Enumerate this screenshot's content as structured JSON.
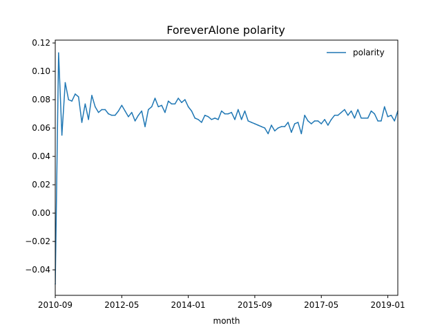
{
  "chart_data": {
    "type": "line",
    "title": "ForeverAlone polarity",
    "xlabel": "month",
    "ylabel": "",
    "legend_position": "top-right",
    "grid": false,
    "line_color": "#1f77b4",
    "x_start": "2010-08",
    "x_end": "2019-04",
    "xlim": [
      "2010-09",
      "2019-04"
    ],
    "ylim": [
      -0.058,
      0.122
    ],
    "x_ticks": [
      {
        "value": "2010-09",
        "label": "2010-09"
      },
      {
        "value": "2012-05",
        "label": "2012-05"
      },
      {
        "value": "2014-01",
        "label": "2014-01"
      },
      {
        "value": "2015-09",
        "label": "2015-09"
      },
      {
        "value": "2017-05",
        "label": "2017-05"
      },
      {
        "value": "2019-01",
        "label": "2019-01"
      }
    ],
    "y_ticks": [
      {
        "value": -0.04,
        "label": "−0.04"
      },
      {
        "value": -0.02,
        "label": "−0.02"
      },
      {
        "value": 0.0,
        "label": "0.00"
      },
      {
        "value": 0.02,
        "label": "0.02"
      },
      {
        "value": 0.04,
        "label": "0.04"
      },
      {
        "value": 0.06,
        "label": "0.06"
      },
      {
        "value": 0.08,
        "label": "0.08"
      },
      {
        "value": 0.1,
        "label": "0.10"
      },
      {
        "value": 0.12,
        "label": "0.12"
      }
    ],
    "series": [
      {
        "name": "polarity",
        "values": [
          0.047,
          -0.05,
          0.113,
          0.055,
          0.092,
          0.08,
          0.079,
          0.084,
          0.082,
          0.064,
          0.077,
          0.066,
          0.083,
          0.075,
          0.071,
          0.073,
          0.073,
          0.07,
          0.069,
          0.069,
          0.072,
          0.076,
          0.072,
          0.068,
          0.071,
          0.065,
          0.069,
          0.072,
          0.061,
          0.073,
          0.075,
          0.081,
          0.075,
          0.076,
          0.071,
          0.079,
          0.077,
          0.077,
          0.081,
          0.078,
          0.08,
          0.075,
          0.072,
          0.067,
          0.066,
          0.064,
          0.069,
          0.068,
          0.066,
          0.067,
          0.066,
          0.072,
          0.07,
          0.07,
          0.071,
          0.066,
          0.073,
          0.066,
          0.072,
          0.065,
          0.064,
          0.063,
          0.062,
          0.061,
          0.06,
          0.056,
          0.062,
          0.058,
          0.06,
          0.061,
          0.061,
          0.064,
          0.057,
          0.063,
          0.064,
          0.056,
          0.069,
          0.065,
          0.063,
          0.065,
          0.065,
          0.063,
          0.066,
          0.062,
          0.066,
          0.069,
          0.069,
          0.071,
          0.073,
          0.069,
          0.072,
          0.067,
          0.073,
          0.067,
          0.067,
          0.067,
          0.072,
          0.07,
          0.065,
          0.065,
          0.075,
          0.068,
          0.069,
          0.065,
          0.072
        ]
      }
    ]
  }
}
